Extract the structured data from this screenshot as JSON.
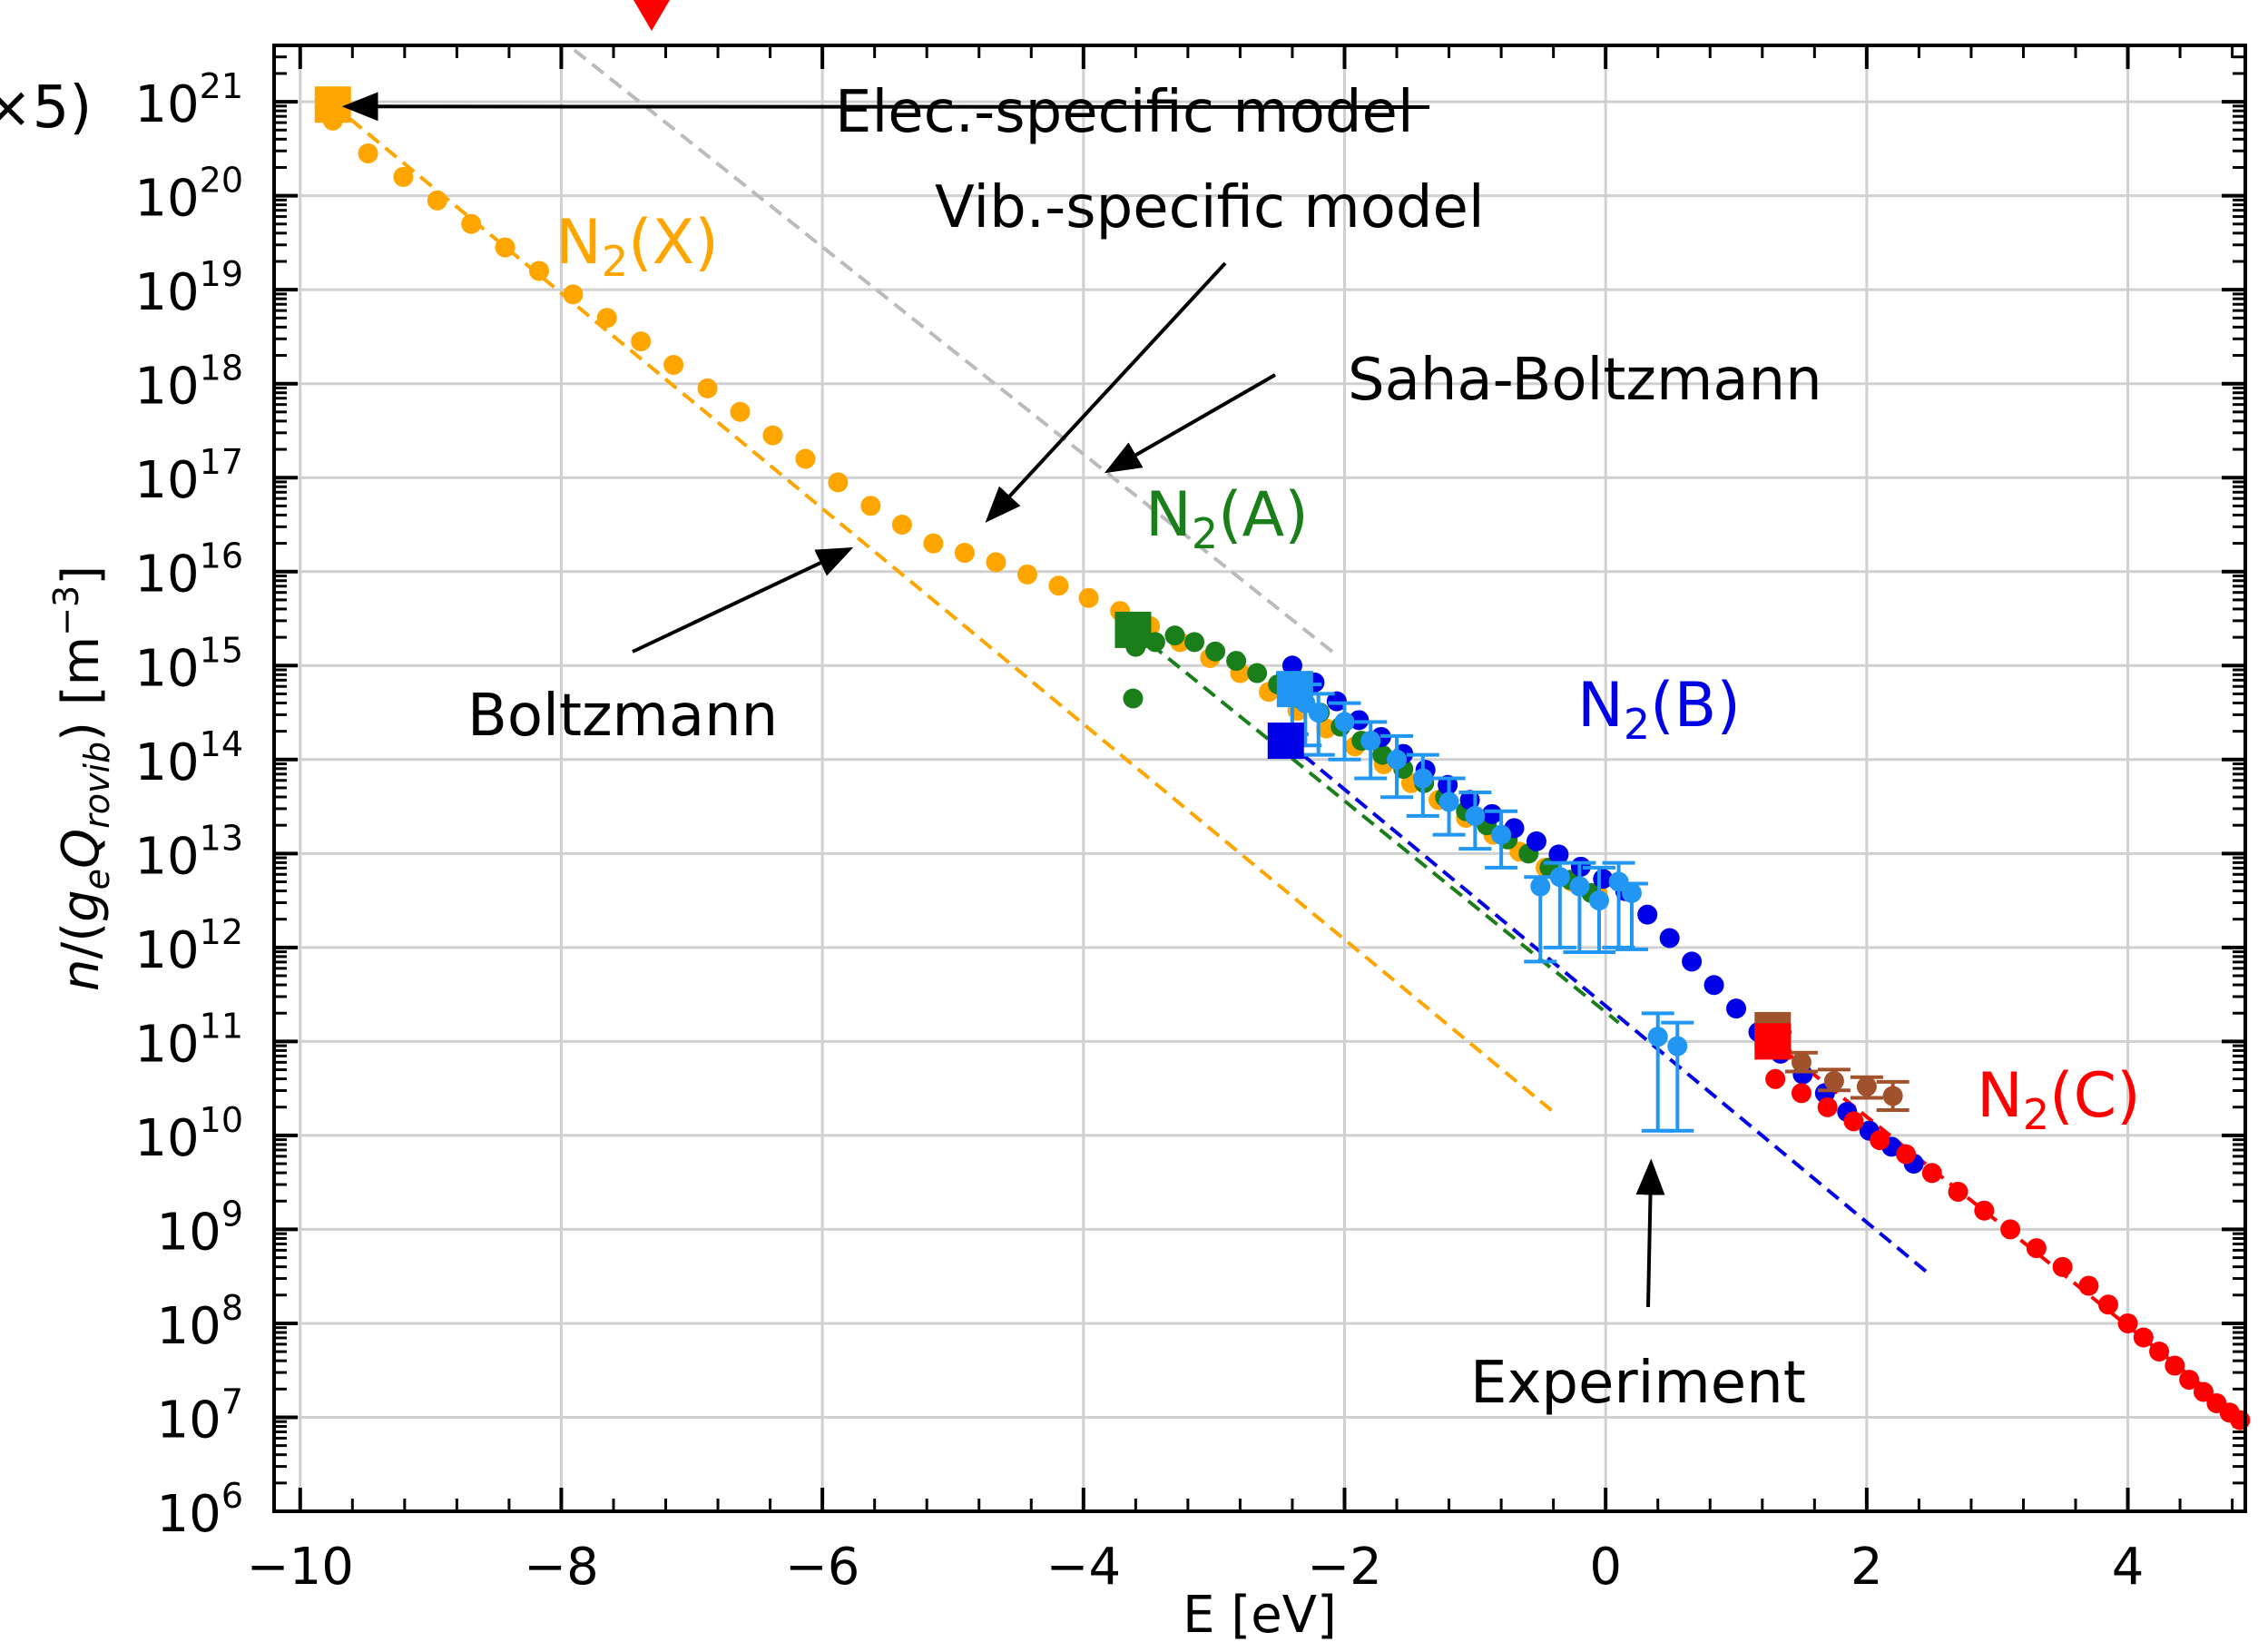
{
  "chart_data": {
    "type": "scatter",
    "title": "",
    "xlabel": "E [eV]",
    "ylabel": "n/(g_e Q_rovib) [m^-3]",
    "ylabel_parts": {
      "n": "n",
      "slash": "/(",
      "g": "g",
      "e": "e",
      "Q": "Q",
      "rovib": "rovib",
      "close": ") [m",
      "exp": "−3",
      "end": "]"
    },
    "xlim": [
      -10.2,
      4.9
    ],
    "ylim_log10": [
      6,
      21.6
    ],
    "yscale": "log",
    "grid": true,
    "xticks": [
      -10,
      -8,
      -6,
      -4,
      -2,
      0,
      2,
      4
    ],
    "xtick_labels": [
      "−10",
      "−8",
      "−6",
      "−4",
      "−2",
      "0",
      "2",
      "4"
    ],
    "ytick_exponents": [
      6,
      7,
      8,
      9,
      10,
      11,
      12,
      13,
      14,
      15,
      16,
      17,
      18,
      19,
      20,
      21
    ],
    "ytick_base": "10",
    "top_left_fragment": "×5)",
    "colors": {
      "X": "#FFA500",
      "A": "#1A7F1A",
      "B": "#0000E6",
      "C": "#FF0000",
      "exp_blue": "#2196F3",
      "exp_brown": "#A0522D",
      "saha": "#BBBBBB",
      "grid": "#D0D0D0",
      "marker_top": "#FF0000"
    },
    "state_labels": [
      {
        "key": "X",
        "text": "N",
        "sub": "2",
        "rest": "(X)",
        "color": "#FFA500"
      },
      {
        "key": "A",
        "text": "N",
        "sub": "2",
        "rest": "(A)",
        "color": "#1A7F1A"
      },
      {
        "key": "B",
        "text": "N",
        "sub": "2",
        "rest": "(B)",
        "color": "#0000E6"
      },
      {
        "key": "C",
        "text": "N",
        "sub": "2",
        "rest": "(C)",
        "color": "#FF0000"
      }
    ],
    "annotations": [
      {
        "text": "Elec.-specific model",
        "points_to": [
          -9.75,
          20.95
        ]
      },
      {
        "text": "Vib.-specific model",
        "points_to": [
          -4.8,
          16.45
        ]
      },
      {
        "text": "Saha-Boltzmann",
        "points_to": [
          -3.9,
          17.0
        ]
      },
      {
        "text": "Boltzmann",
        "points_to": [
          -5.7,
          16.3
        ]
      },
      {
        "text": "Experiment",
        "points_to": [
          0.35,
          9.85
        ]
      }
    ],
    "series": [
      {
        "name": "N2(X) vib-specific model",
        "color": "#FFA500",
        "x": [
          -9.75,
          -9.48,
          -9.21,
          -8.95,
          -8.69,
          -8.43,
          -8.17,
          -7.91,
          -7.65,
          -7.39,
          -7.14,
          -6.88,
          -6.63,
          -6.38,
          -6.13,
          -5.88,
          -5.63,
          -5.39,
          -5.15,
          -4.91,
          -4.67,
          -4.43,
          -4.19,
          -3.96,
          -3.72,
          -3.49,
          -3.26,
          -3.03,
          -2.8,
          -2.58,
          -2.36,
          -2.14,
          -1.92,
          -1.7,
          -1.49,
          -1.28,
          -1.07,
          -0.86,
          -0.66,
          -0.46,
          -0.26,
          -0.06
        ],
        "log10y": [
          20.8,
          20.45,
          20.2,
          19.95,
          19.7,
          19.45,
          19.2,
          18.95,
          18.7,
          18.45,
          18.2,
          17.95,
          17.7,
          17.45,
          17.2,
          16.95,
          16.7,
          16.5,
          16.3,
          16.2,
          16.1,
          15.97,
          15.85,
          15.72,
          15.58,
          15.42,
          15.25,
          15.08,
          14.92,
          14.72,
          14.52,
          14.33,
          14.14,
          13.95,
          13.75,
          13.57,
          13.38,
          13.2,
          13.02,
          12.85,
          12.7,
          12.56
        ]
      },
      {
        "name": "N2(A) vib-specific model",
        "color": "#1A7F1A",
        "x": [
          -3.6,
          -3.45,
          -3.3,
          -3.15,
          -2.99,
          -2.83,
          -2.67,
          -2.51,
          -2.35,
          -2.19,
          -2.03,
          -1.87,
          -1.71,
          -1.55,
          -1.39,
          -1.23,
          -1.07,
          -0.91,
          -0.75,
          -0.59,
          -0.43,
          -0.27,
          -0.11
        ],
        "log10y": [
          15.2,
          15.25,
          15.32,
          15.25,
          15.15,
          15.05,
          14.92,
          14.8,
          14.65,
          14.5,
          14.35,
          14.2,
          14.05,
          13.9,
          13.75,
          13.6,
          13.45,
          13.3,
          13.15,
          13.0,
          12.85,
          12.72,
          12.58
        ]
      },
      {
        "name": "N2(A) low point",
        "color": "#1A7F1A",
        "x": [
          -3.62
        ],
        "log10y": [
          14.65
        ]
      },
      {
        "name": "N2(B) vib-specific model",
        "color": "#0000E6",
        "x": [
          -2.4,
          -2.23,
          -2.06,
          -1.89,
          -1.72,
          -1.55,
          -1.38,
          -1.21,
          -1.04,
          -0.87,
          -0.7,
          -0.53,
          -0.36,
          -0.19,
          -0.02,
          0.15,
          0.32,
          0.49,
          0.66,
          0.83,
          1.0,
          1.17,
          1.34,
          1.51,
          1.68,
          1.85,
          2.02,
          2.19,
          2.36
        ],
        "log10y": [
          15.0,
          14.82,
          14.62,
          14.42,
          14.24,
          14.06,
          13.89,
          13.73,
          13.57,
          13.42,
          13.27,
          13.13,
          12.99,
          12.86,
          12.73,
          12.6,
          12.35,
          12.1,
          11.85,
          11.6,
          11.35,
          11.1,
          10.87,
          10.65,
          10.45,
          10.25,
          10.05,
          9.88,
          9.7
        ]
      },
      {
        "name": "N2(C) vib-specific model",
        "color": "#FF0000",
        "x": [
          1.3,
          1.5,
          1.7,
          1.9,
          2.1,
          2.3,
          2.5,
          2.7,
          2.9,
          3.1,
          3.3,
          3.5,
          3.7,
          3.85,
          4.0,
          4.12,
          4.24,
          4.36,
          4.47,
          4.58,
          4.68,
          4.78,
          4.86
        ],
        "log10y": [
          10.6,
          10.45,
          10.3,
          10.15,
          9.95,
          9.8,
          9.6,
          9.4,
          9.2,
          9.0,
          8.8,
          8.6,
          8.4,
          8.2,
          8.0,
          7.85,
          7.7,
          7.55,
          7.4,
          7.27,
          7.15,
          7.05,
          6.97
        ]
      },
      {
        "name": "Experiment N2(B)",
        "color": "#2196F3",
        "x": [
          -2.4,
          -2.3,
          -2.2,
          -2.0,
          -1.8,
          -1.6,
          -1.4,
          -1.2,
          -1.0,
          -0.8,
          -0.5,
          -0.35,
          -0.2,
          -0.05,
          0.1,
          0.2,
          0.4,
          0.55
        ],
        "log10y": [
          14.72,
          14.6,
          14.5,
          14.4,
          14.2,
          14.0,
          13.8,
          13.55,
          13.4,
          13.2,
          12.65,
          12.75,
          12.65,
          12.5,
          12.7,
          12.58,
          11.05,
          10.95
        ],
        "err_low": [
          0.45,
          0.45,
          0.45,
          0.4,
          0.4,
          0.4,
          0.4,
          0.35,
          0.35,
          0.35,
          0.8,
          0.75,
          0.7,
          0.55,
          0.7,
          0.6,
          1.0,
          0.9
        ],
        "err_high": [
          0.2,
          0.2,
          0.2,
          0.2,
          0.2,
          0.25,
          0.25,
          0.25,
          0.25,
          0.25,
          0.1,
          0.15,
          0.25,
          0.35,
          0.2,
          0.1,
          0.25,
          0.25
        ]
      },
      {
        "name": "Experiment N2(C)",
        "color": "#A0522D",
        "x": [
          1.3,
          1.5,
          1.75,
          2.0,
          2.2
        ],
        "log10y": [
          11.0,
          10.78,
          10.58,
          10.52,
          10.42
        ],
        "err_low": [
          0.1,
          0.1,
          0.1,
          0.12,
          0.15
        ],
        "err_high": [
          0.1,
          0.1,
          0.12,
          0.1,
          0.15
        ]
      },
      {
        "name": "Elec.-specific model",
        "marker": "square",
        "points": [
          {
            "x": -9.75,
            "log10y": 20.97,
            "color": "#FFA500"
          },
          {
            "x": -3.62,
            "log10y": 15.38,
            "color": "#1A7F1A"
          },
          {
            "x": -2.45,
            "log10y": 14.2,
            "color": "#0000E6"
          },
          {
            "x": -2.38,
            "log10y": 14.75,
            "color": "#2196F3"
          },
          {
            "x": 1.28,
            "log10y": 11.12,
            "color": "#A0522D"
          },
          {
            "x": 1.28,
            "log10y": 11.0,
            "color": "#FF0000"
          }
        ]
      }
    ],
    "lines": [
      {
        "name": "Saha-Boltzmann",
        "color": "#BBBBBB",
        "x": [
          -7.9,
          -2.05
        ],
        "log10y": [
          21.55,
          15.1
        ]
      },
      {
        "name": "Boltzmann N2(X)",
        "color": "#FFA500",
        "x": [
          -9.75,
          -0.4
        ],
        "log10y": [
          20.97,
          10.25
        ]
      },
      {
        "name": "Boltzmann N2(A)",
        "color": "#1A7F1A",
        "x": [
          -3.62,
          0.1
        ],
        "log10y": [
          15.38,
          11.2
        ]
      },
      {
        "name": "Boltzmann N2(B)",
        "color": "#0000E6",
        "x": [
          -2.45,
          2.5
        ],
        "log10y": [
          14.2,
          8.5
        ]
      },
      {
        "name": "Boltzmann N2(C)",
        "color": "#FF0000",
        "x": [
          1.28,
          4.9
        ],
        "log10y": [
          11.0,
          6.97
        ]
      }
    ]
  }
}
